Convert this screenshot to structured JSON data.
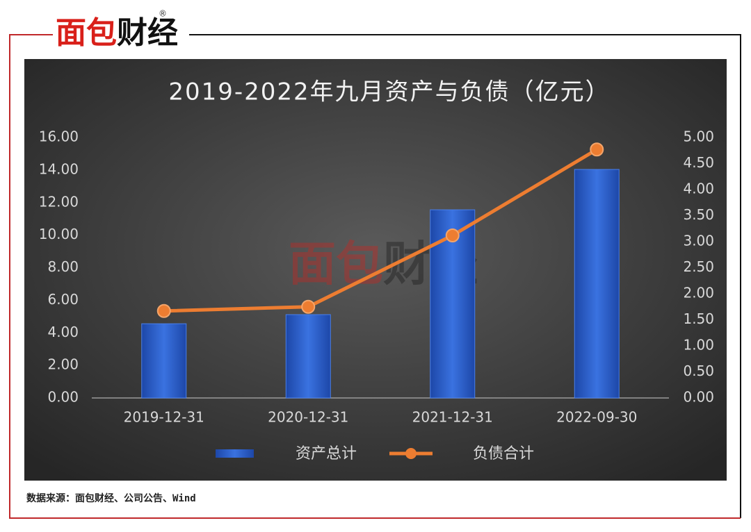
{
  "brand": "面包财经",
  "brand_mark": "®",
  "source": "数据来源：面包财经、公司公告、Wind",
  "chart_data": {
    "type": "bar",
    "title": "2019-2022年九月资产与负债（亿元）",
    "categories": [
      "2019-12-31",
      "2020-12-31",
      "2021-12-31",
      "2022-09-30"
    ],
    "series": [
      {
        "name": "资产总计",
        "type": "bar",
        "color": "#2f66d4",
        "values": [
          4.56,
          5.12,
          11.56,
          14.04
        ]
      },
      {
        "name": "负债合计",
        "type": "line",
        "color": "#ed7d31",
        "axis": "y2",
        "values": [
          1.67,
          1.75,
          3.12,
          4.77
        ]
      }
    ],
    "ylim": [
      0,
      16
    ],
    "yticks": [
      {
        "value": 0,
        "label": "0.00"
      },
      {
        "value": 2,
        "label": "2.00"
      },
      {
        "value": 4,
        "label": "4.00"
      },
      {
        "value": 6,
        "label": "6.00"
      },
      {
        "value": 8,
        "label": "8.00"
      },
      {
        "value": 10,
        "label": "10.00"
      },
      {
        "value": 12,
        "label": "12.00"
      },
      {
        "value": 14,
        "label": "14.00"
      },
      {
        "value": 16,
        "label": "16.00"
      }
    ],
    "y2lim": [
      0,
      5
    ],
    "y2ticks": [
      {
        "value": 0,
        "label": "0.00"
      },
      {
        "value": 0.5,
        "label": "0.50"
      },
      {
        "value": 1,
        "label": "1.00"
      },
      {
        "value": 1.5,
        "label": "1.50"
      },
      {
        "value": 2,
        "label": "2.00"
      },
      {
        "value": 2.5,
        "label": "2.50"
      },
      {
        "value": 3,
        "label": "3.00"
      },
      {
        "value": 3.5,
        "label": "3.50"
      },
      {
        "value": 4,
        "label": "4.00"
      },
      {
        "value": 4.5,
        "label": "4.50"
      },
      {
        "value": 5,
        "label": "5.00"
      }
    ],
    "legend": "bottom"
  }
}
